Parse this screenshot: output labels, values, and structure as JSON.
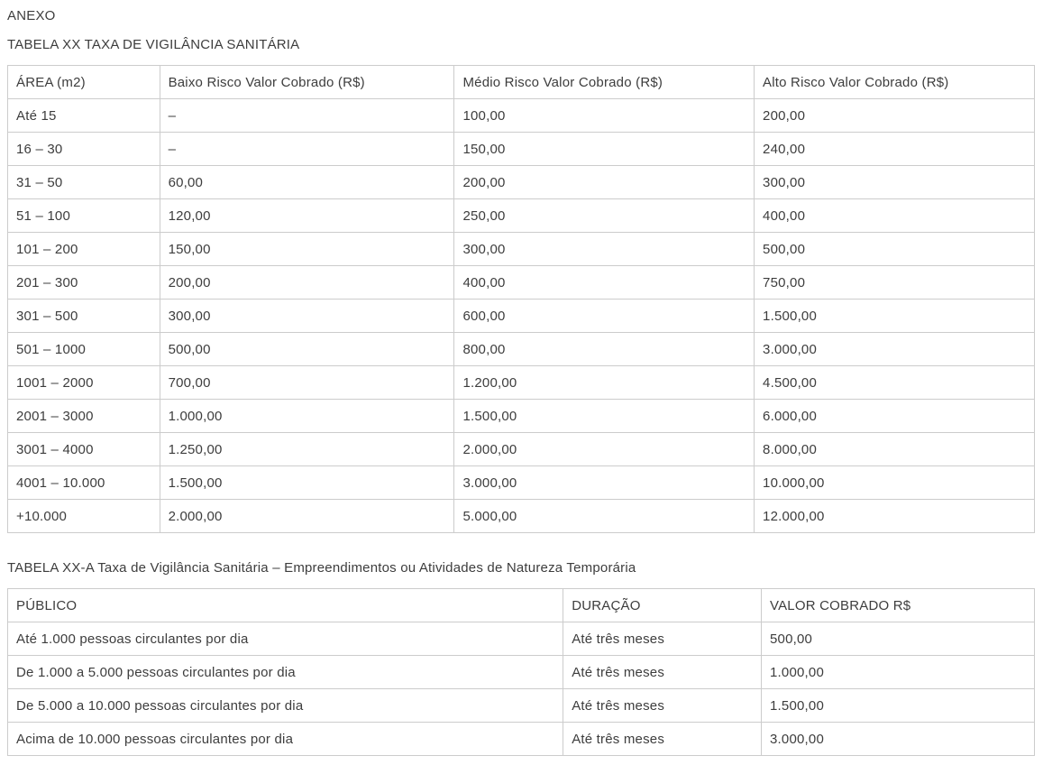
{
  "page": {
    "heading": "ANEXO"
  },
  "table1": {
    "title": "TABELA XX TAXA DE VIGILÂNCIA SANITÁRIA",
    "columns": [
      "ÁREA (m2)",
      "Baixo Risco Valor Cobrado (R$)",
      "Médio Risco Valor Cobrado (R$)",
      "Alto Risco Valor Cobrado (R$)"
    ],
    "rows": [
      [
        "Até 15",
        "–",
        "100,00",
        "200,00"
      ],
      [
        "16 – 30",
        "–",
        "150,00",
        "240,00"
      ],
      [
        "31 – 50",
        "60,00",
        "200,00",
        "300,00"
      ],
      [
        "51 – 100",
        "120,00",
        "250,00",
        "400,00"
      ],
      [
        "101 – 200",
        "150,00",
        "300,00",
        "500,00"
      ],
      [
        "201 – 300",
        "200,00",
        "400,00",
        "750,00"
      ],
      [
        "301 – 500",
        "300,00",
        "600,00",
        "1.500,00"
      ],
      [
        "501 – 1000",
        "500,00",
        "800,00",
        "3.000,00"
      ],
      [
        "1001 – 2000",
        "700,00",
        "1.200,00",
        "4.500,00"
      ],
      [
        "2001 – 3000",
        "1.000,00",
        "1.500,00",
        "6.000,00"
      ],
      [
        "3001 – 4000",
        "1.250,00",
        "2.000,00",
        "8.000,00"
      ],
      [
        "4001 – 10.000",
        "1.500,00",
        "3.000,00",
        "10.000,00"
      ],
      [
        "+10.000",
        "2.000,00",
        "5.000,00",
        "12.000,00"
      ]
    ]
  },
  "table2": {
    "title": "TABELA XX-A Taxa de Vigilância Sanitária – Empreendimentos ou Atividades de Natureza Temporária",
    "columns": [
      "PÚBLICO",
      "DURAÇÃO",
      "VALOR COBRADO R$"
    ],
    "rows": [
      [
        "Até 1.000 pessoas circulantes por dia",
        "Até três meses",
        "500,00"
      ],
      [
        "De 1.000 a 5.000 pessoas circulantes por dia",
        "Até três meses",
        "1.000,00"
      ],
      [
        "De 5.000 a 10.000 pessoas circulantes por dia",
        "Até três meses",
        "1.500,00"
      ],
      [
        "Acima de 10.000 pessoas circulantes por dia",
        "Até três meses",
        "3.000,00"
      ]
    ]
  },
  "colors": {
    "text": "#3d3d3d",
    "border": "#cccccc",
    "background": "#ffffff"
  }
}
